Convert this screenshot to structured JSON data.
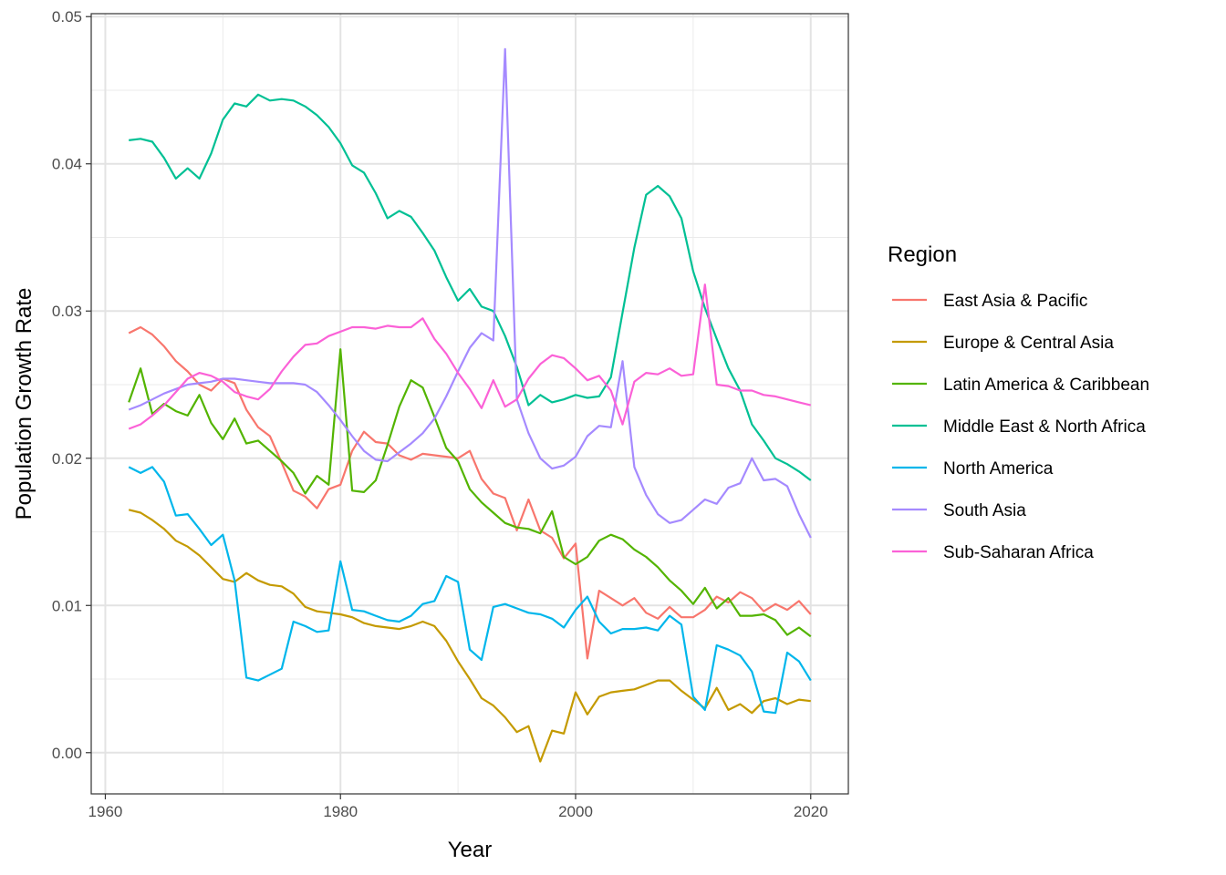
{
  "chart_data": {
    "type": "line",
    "xlabel": "Year",
    "ylabel": "Population Growth Rate",
    "xlim": [
      1958.8,
      2023.2
    ],
    "ylim": [
      -0.0028,
      0.0502
    ],
    "x_ticks": [
      1960,
      1980,
      2000,
      2020
    ],
    "x_tick_labels": [
      "1960",
      "1980",
      "2000",
      "2020"
    ],
    "y_ticks": [
      0,
      0.01,
      0.02,
      0.03,
      0.04,
      0.05
    ],
    "y_tick_labels": [
      "0.00",
      "0.01",
      "0.02",
      "0.03",
      "0.04",
      "0.05"
    ],
    "grid": true,
    "legend": {
      "title": "Region",
      "position": "right"
    },
    "x": [
      1962,
      1963,
      1964,
      1965,
      1966,
      1967,
      1968,
      1969,
      1970,
      1971,
      1972,
      1973,
      1974,
      1975,
      1976,
      1977,
      1978,
      1979,
      1980,
      1981,
      1982,
      1983,
      1984,
      1985,
      1986,
      1987,
      1988,
      1989,
      1990,
      1991,
      1992,
      1993,
      1994,
      1995,
      1996,
      1997,
      1998,
      1999,
      2000,
      2001,
      2002,
      2003,
      2004,
      2005,
      2006,
      2007,
      2008,
      2009,
      2010,
      2011,
      2012,
      2013,
      2014,
      2015,
      2016,
      2017,
      2018,
      2019,
      2020
    ],
    "series": [
      {
        "name": "East Asia & Pacific",
        "color": "#F8766D",
        "values": [
          0.0285,
          0.0289,
          0.0284,
          0.0276,
          0.0266,
          0.0259,
          0.025,
          0.0246,
          0.0254,
          0.0251,
          0.0233,
          0.0221,
          0.0215,
          0.0197,
          0.0178,
          0.0174,
          0.0166,
          0.0179,
          0.0182,
          0.0205,
          0.0218,
          0.0211,
          0.021,
          0.0202,
          0.0199,
          0.0203,
          0.0202,
          0.0201,
          0.02,
          0.0205,
          0.0186,
          0.0176,
          0.0173,
          0.0151,
          0.0172,
          0.0151,
          0.0146,
          0.0132,
          0.0142,
          0.0064,
          0.011,
          0.0105,
          0.01,
          0.0105,
          0.0095,
          0.0091,
          0.0099,
          0.0092,
          0.0092,
          0.0097,
          0.0106,
          0.0102,
          0.0109,
          0.0105,
          0.0096,
          0.0101,
          0.0097,
          0.0103,
          0.0094
        ]
      },
      {
        "name": "Europe & Central Asia",
        "color": "#C49A00",
        "values": [
          0.0165,
          0.0163,
          0.0158,
          0.0152,
          0.0144,
          0.014,
          0.0134,
          0.0126,
          0.0118,
          0.0116,
          0.0122,
          0.0117,
          0.0114,
          0.0113,
          0.0108,
          0.0099,
          0.0096,
          0.0095,
          0.0094,
          0.0092,
          0.0088,
          0.0086,
          0.0085,
          0.0084,
          0.0086,
          0.0089,
          0.0086,
          0.0076,
          0.0062,
          0.005,
          0.0037,
          0.0032,
          0.0024,
          0.0014,
          0.0018,
          -0.0006,
          0.0015,
          0.0013,
          0.0041,
          0.0026,
          0.0038,
          0.0041,
          0.0042,
          0.0043,
          0.0046,
          0.0049,
          0.0049,
          0.0042,
          0.0036,
          0.003,
          0.0044,
          0.0029,
          0.0033,
          0.0027,
          0.0035,
          0.0037,
          0.0033,
          0.0036,
          0.0035
        ]
      },
      {
        "name": "Latin America & Caribbean",
        "color": "#53B400",
        "values": [
          0.0238,
          0.0261,
          0.023,
          0.0237,
          0.0232,
          0.0229,
          0.0243,
          0.0224,
          0.0213,
          0.0227,
          0.021,
          0.0212,
          0.0205,
          0.0198,
          0.019,
          0.0176,
          0.0188,
          0.0182,
          0.0274,
          0.0178,
          0.0177,
          0.0185,
          0.0209,
          0.0235,
          0.0253,
          0.0248,
          0.0228,
          0.0207,
          0.0198,
          0.0179,
          0.017,
          0.0163,
          0.0156,
          0.0153,
          0.0152,
          0.0149,
          0.0164,
          0.0133,
          0.0128,
          0.0133,
          0.0144,
          0.0148,
          0.0145,
          0.0138,
          0.0133,
          0.0126,
          0.0117,
          0.011,
          0.0101,
          0.0112,
          0.0098,
          0.0105,
          0.0093,
          0.0093,
          0.0094,
          0.009,
          0.008,
          0.0085,
          0.0079
        ]
      },
      {
        "name": "Middle East & North Africa",
        "color": "#00C094",
        "values": [
          0.0416,
          0.0417,
          0.0415,
          0.0404,
          0.039,
          0.0397,
          0.039,
          0.0407,
          0.043,
          0.0441,
          0.0439,
          0.0447,
          0.0443,
          0.0444,
          0.0443,
          0.0439,
          0.0433,
          0.0425,
          0.0414,
          0.0399,
          0.0394,
          0.038,
          0.0363,
          0.0368,
          0.0364,
          0.0353,
          0.0341,
          0.0323,
          0.0307,
          0.0315,
          0.0303,
          0.03,
          0.0283,
          0.0262,
          0.0236,
          0.0243,
          0.0238,
          0.024,
          0.0243,
          0.0241,
          0.0242,
          0.0255,
          0.0299,
          0.0343,
          0.0379,
          0.0385,
          0.0378,
          0.0363,
          0.0327,
          0.0302,
          0.0281,
          0.0261,
          0.0246,
          0.0223,
          0.0212,
          0.02,
          0.0196,
          0.0191,
          0.0185
        ]
      },
      {
        "name": "North America",
        "color": "#00B6EB",
        "values": [
          0.0194,
          0.019,
          0.0194,
          0.0184,
          0.0161,
          0.0162,
          0.0152,
          0.0141,
          0.0148,
          0.0117,
          0.0051,
          0.0049,
          0.0053,
          0.0057,
          0.0089,
          0.0086,
          0.0082,
          0.0083,
          0.013,
          0.0097,
          0.0096,
          0.0093,
          0.009,
          0.0089,
          0.0093,
          0.0101,
          0.0103,
          0.012,
          0.0116,
          0.007,
          0.0063,
          0.0099,
          0.0101,
          0.0098,
          0.0095,
          0.0094,
          0.0091,
          0.0085,
          0.0097,
          0.0106,
          0.0089,
          0.0081,
          0.0084,
          0.0084,
          0.0085,
          0.0083,
          0.0093,
          0.0087,
          0.0038,
          0.0029,
          0.0073,
          0.007,
          0.0066,
          0.0055,
          0.0028,
          0.0027,
          0.0068,
          0.0062,
          0.0049
        ]
      },
      {
        "name": "South Asia",
        "color": "#A58AFF",
        "values": [
          0.0233,
          0.0236,
          0.024,
          0.0244,
          0.0247,
          0.025,
          0.0251,
          0.0252,
          0.0254,
          0.0254,
          0.0253,
          0.0252,
          0.0251,
          0.0251,
          0.0251,
          0.025,
          0.0245,
          0.0236,
          0.0226,
          0.0215,
          0.0205,
          0.0199,
          0.0198,
          0.0204,
          0.021,
          0.0217,
          0.0227,
          0.0242,
          0.0259,
          0.0275,
          0.0285,
          0.028,
          0.0478,
          0.024,
          0.0217,
          0.02,
          0.0193,
          0.0195,
          0.0201,
          0.0215,
          0.0222,
          0.0221,
          0.0266,
          0.0194,
          0.0175,
          0.0162,
          0.0156,
          0.0158,
          0.0165,
          0.0172,
          0.0169,
          0.018,
          0.0183,
          0.02,
          0.0185,
          0.0186,
          0.0181,
          0.0162,
          0.0146
        ]
      },
      {
        "name": "Sub-Saharan Africa",
        "color": "#FB61D7",
        "values": [
          0.022,
          0.0223,
          0.0229,
          0.0236,
          0.0245,
          0.0254,
          0.0258,
          0.0256,
          0.0252,
          0.0245,
          0.0242,
          0.024,
          0.0247,
          0.0259,
          0.0269,
          0.0277,
          0.0278,
          0.0283,
          0.0286,
          0.0289,
          0.0289,
          0.0288,
          0.029,
          0.0289,
          0.0289,
          0.0295,
          0.0281,
          0.0271,
          0.0258,
          0.0247,
          0.0234,
          0.0253,
          0.0235,
          0.024,
          0.0254,
          0.0264,
          0.027,
          0.0268,
          0.0261,
          0.0253,
          0.0256,
          0.0246,
          0.0223,
          0.0252,
          0.0258,
          0.0257,
          0.0261,
          0.0256,
          0.0257,
          0.0318,
          0.025,
          0.0249,
          0.0246,
          0.0246,
          0.0243,
          0.0242,
          0.024,
          0.0238,
          0.0236
        ]
      }
    ]
  }
}
